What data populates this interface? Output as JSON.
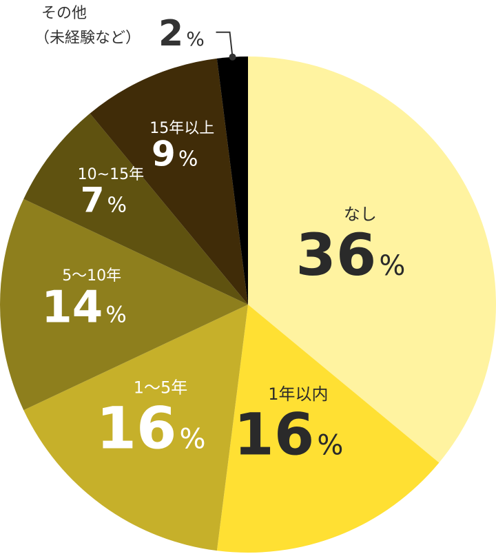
{
  "chart_data": {
    "type": "pie",
    "title": "",
    "unit": "%",
    "slices": [
      {
        "label": "なし",
        "value": 36,
        "color": "#FFF3A0"
      },
      {
        "label": "1年以内",
        "value": 16,
        "color": "#FFE033"
      },
      {
        "label": "1〜5年",
        "value": 16,
        "color": "#C6B02A"
      },
      {
        "label": "5〜10年",
        "value": 14,
        "color": "#8E7F1D"
      },
      {
        "label": "10~15年",
        "value": 7,
        "color": "#5F5210"
      },
      {
        "label": "15年以上",
        "value": 9,
        "color": "#402C08"
      },
      {
        "label_line1": "その他",
        "label_line2": "（未経験など）",
        "value": 2,
        "color": "#000000"
      }
    ]
  }
}
